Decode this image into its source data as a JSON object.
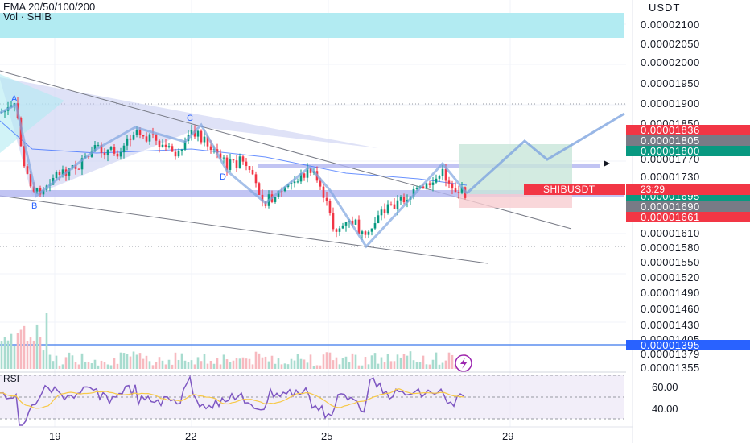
{
  "header": {
    "indicator_label": "EMA 20/50/100/200",
    "volume_label": "Vol · SHIB"
  },
  "price_axis": {
    "currency": "USDT",
    "labels": [
      {
        "value": "0.00002100"
      },
      {
        "value": "0.00002050"
      },
      {
        "value": "0.00002000"
      },
      {
        "value": "0.00001950"
      },
      {
        "value": "0.00001900"
      },
      {
        "value": "0.00001850"
      },
      {
        "value": "0.00001770"
      },
      {
        "value": "0.00001730"
      },
      {
        "value": "0.00001610"
      },
      {
        "value": "0.00001580"
      },
      {
        "value": "0.00001550"
      },
      {
        "value": "0.00001520"
      },
      {
        "value": "0.00001490"
      },
      {
        "value": "0.00001460"
      },
      {
        "value": "0.00001430"
      },
      {
        "value": "0.00001405"
      },
      {
        "value": "0.00001379"
      },
      {
        "value": "0.00001355"
      }
    ],
    "tags": [
      {
        "value": "0.00001836",
        "color": "#f23645"
      },
      {
        "value": "0.00001805",
        "color": "#787b86"
      },
      {
        "value": "0.00001800",
        "color": "#089981"
      },
      {
        "value": "0.00001695",
        "color": "#089981"
      },
      {
        "value": "0.00001690",
        "color": "#787b86"
      },
      {
        "value": "0.00001661",
        "color": "#f23645"
      },
      {
        "value": "0.00001395",
        "color": "#2962ff"
      }
    ],
    "symbol_tag": "SHIBUSDT",
    "countdown": "23:29"
  },
  "pattern_points": {
    "a": "A",
    "b": "B",
    "c": "C",
    "d": "D"
  },
  "time_axis": {
    "labels": [
      "19",
      "22",
      "25",
      "29"
    ]
  },
  "rsi": {
    "title": "RSI",
    "levels": [
      "60.00",
      "40.00"
    ]
  },
  "colors": {
    "up": "#089981",
    "down": "#f23645",
    "pattern": "#2962ff",
    "band": "#b2b5f0",
    "rsi": "#7e57c2"
  }
}
